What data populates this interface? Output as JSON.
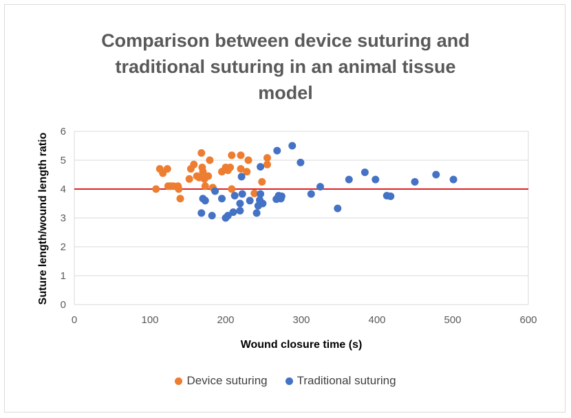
{
  "chart_data": {
    "type": "scatter",
    "title_lines": [
      "Comparison between device suturing and",
      "traditional suturing in an animal tissue",
      "model"
    ],
    "xlabel": "Wound closure time (s)",
    "ylabel": "Suture length/wound length ratio",
    "xlim": [
      0,
      600
    ],
    "ylim": [
      0,
      6
    ],
    "xticks": [
      0,
      100,
      200,
      300,
      400,
      500,
      600
    ],
    "yticks": [
      0,
      1,
      2,
      3,
      4,
      5,
      6
    ],
    "grid": "horizontal",
    "legend_position": "bottom",
    "reference_line": {
      "y": 4,
      "color": "#e02020"
    },
    "series": [
      {
        "name": "Device suturing",
        "color": "#ed7d31",
        "points": [
          [
            108,
            4.0
          ],
          [
            113,
            4.7
          ],
          [
            117,
            4.55
          ],
          [
            123,
            4.7
          ],
          [
            124,
            4.1
          ],
          [
            127,
            4.1
          ],
          [
            131,
            4.1
          ],
          [
            137,
            4.1
          ],
          [
            138,
            4.0
          ],
          [
            140,
            3.67
          ],
          [
            152,
            4.35
          ],
          [
            154,
            4.7
          ],
          [
            158,
            4.85
          ],
          [
            162,
            4.45
          ],
          [
            165,
            4.4
          ],
          [
            168,
            5.25
          ],
          [
            169,
            4.75
          ],
          [
            170,
            4.6
          ],
          [
            172,
            4.35
          ],
          [
            173,
            4.1
          ],
          [
            177,
            4.45
          ],
          [
            179,
            5.0
          ],
          [
            183,
            4.05
          ],
          [
            195,
            4.6
          ],
          [
            200,
            4.75
          ],
          [
            203,
            4.65
          ],
          [
            206,
            4.75
          ],
          [
            208,
            5.17
          ],
          [
            208,
            4.0
          ],
          [
            220,
            5.17
          ],
          [
            220,
            4.7
          ],
          [
            228,
            4.6
          ],
          [
            230,
            5.0
          ],
          [
            238,
            3.85
          ],
          [
            248,
            4.25
          ],
          [
            255,
            5.08
          ],
          [
            255,
            4.85
          ]
        ]
      },
      {
        "name": "Traditional suturing",
        "color": "#4472c4",
        "points": [
          [
            168,
            3.17
          ],
          [
            170,
            3.67
          ],
          [
            173,
            3.6
          ],
          [
            182,
            3.08
          ],
          [
            186,
            3.93
          ],
          [
            195,
            3.67
          ],
          [
            200,
            3.0
          ],
          [
            203,
            3.08
          ],
          [
            210,
            3.2
          ],
          [
            212,
            3.77
          ],
          [
            219,
            3.5
          ],
          [
            219,
            3.25
          ],
          [
            221,
            4.43
          ],
          [
            222,
            3.83
          ],
          [
            232,
            3.6
          ],
          [
            241,
            3.17
          ],
          [
            243,
            3.42
          ],
          [
            245,
            3.62
          ],
          [
            246,
            3.83
          ],
          [
            246,
            4.77
          ],
          [
            249,
            3.5
          ],
          [
            267,
            3.65
          ],
          [
            268,
            5.33
          ],
          [
            270,
            3.77
          ],
          [
            273,
            3.67
          ],
          [
            274,
            3.75
          ],
          [
            288,
            5.5
          ],
          [
            299,
            4.92
          ],
          [
            313,
            3.83
          ],
          [
            325,
            4.08
          ],
          [
            348,
            3.33
          ],
          [
            363,
            4.33
          ],
          [
            384,
            4.58
          ],
          [
            398,
            4.33
          ],
          [
            413,
            3.77
          ],
          [
            418,
            3.75
          ],
          [
            450,
            4.25
          ],
          [
            478,
            4.5
          ],
          [
            501,
            4.33
          ]
        ]
      }
    ]
  }
}
